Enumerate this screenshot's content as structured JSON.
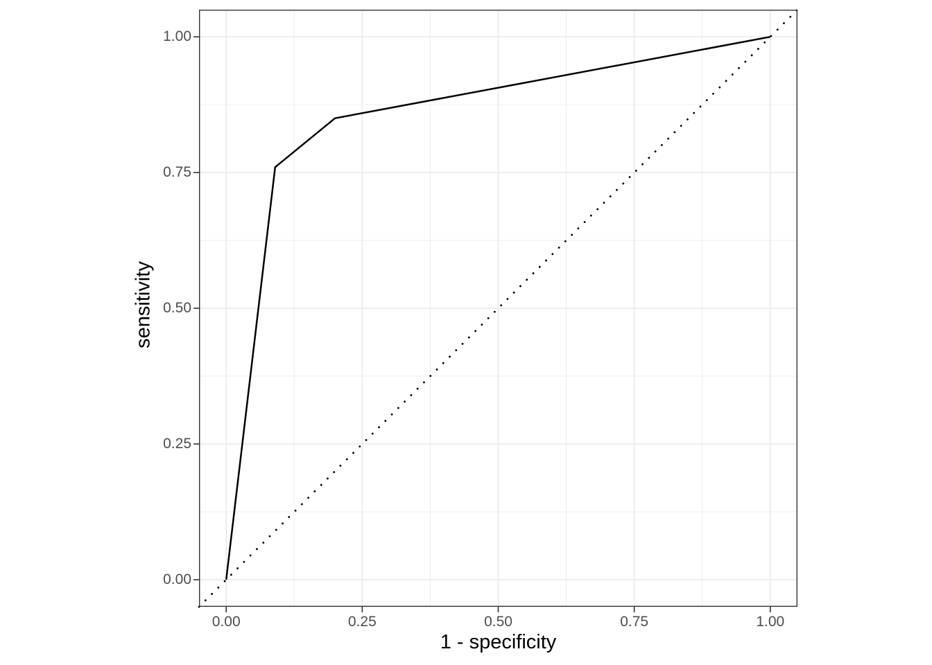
{
  "chart_data": {
    "type": "line",
    "title": "",
    "xlabel": "1 - specificity",
    "ylabel": "sensitivity",
    "xlim": [
      -0.05,
      1.05
    ],
    "ylim": [
      -0.05,
      1.05
    ],
    "grid": "major-and-minor",
    "legend": "none",
    "x_ticks": {
      "values": [
        0,
        0.25,
        0.5,
        0.75,
        1
      ],
      "labels": [
        "0.00",
        "0.25",
        "0.50",
        "0.75",
        "1.00"
      ]
    },
    "y_ticks": {
      "values": [
        0,
        0.25,
        0.5,
        0.75,
        1
      ],
      "labels": [
        "0.00",
        "0.25",
        "0.50",
        "0.75",
        "1.00"
      ]
    },
    "x_minor": [
      0.125,
      0.375,
      0.625,
      0.875
    ],
    "y_minor": [
      0.125,
      0.375,
      0.625,
      0.875
    ],
    "series": [
      {
        "name": "chance-diagonal",
        "linetype": "dotted",
        "color": "#000000",
        "width": 2.8,
        "points": [
          {
            "x": -0.05,
            "y": -0.05
          },
          {
            "x": 1.05,
            "y": 1.05
          }
        ]
      },
      {
        "name": "roc-curve",
        "linetype": "solid",
        "color": "#000000",
        "width": 2.5,
        "points": [
          {
            "x": 0.0,
            "y": 0.0
          },
          {
            "x": 0.09,
            "y": 0.76
          },
          {
            "x": 0.2,
            "y": 0.85
          },
          {
            "x": 1.0,
            "y": 1.0
          }
        ]
      }
    ],
    "colors": {
      "background": "#ffffff",
      "grid_major": "#e8e8e8",
      "grid_minor": "#efefef",
      "panel_border": "#333333",
      "tick_mark": "#333333",
      "tick_label": "#4d4d4d",
      "axis_title": "#000000"
    }
  }
}
